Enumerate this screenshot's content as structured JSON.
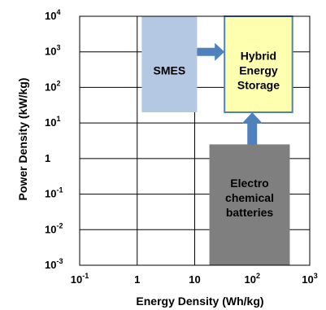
{
  "chart_data": {
    "type": "diagram",
    "xlabel": "Energy Density (Wh/kg)",
    "ylabel": "Power Density (kW/kg)",
    "x_scale": "log",
    "y_scale": "log",
    "xlim": [
      0.1,
      1000
    ],
    "ylim": [
      0.001,
      10000
    ],
    "grid": true,
    "x_ticks": [
      {
        "base": "10",
        "exp": "-1"
      },
      {
        "base": "1",
        "exp": ""
      },
      {
        "base": "10",
        "exp": ""
      },
      {
        "base": "10",
        "exp": "2"
      },
      {
        "base": "10",
        "exp": "3"
      }
    ],
    "y_ticks": [
      {
        "base": "10",
        "exp": "4"
      },
      {
        "base": "10",
        "exp": "3"
      },
      {
        "base": "10",
        "exp": "2"
      },
      {
        "base": "10",
        "exp": "1"
      },
      {
        "base": "1",
        "exp": ""
      },
      {
        "base": "10",
        "exp": "-1"
      },
      {
        "base": "10",
        "exp": "-2"
      },
      {
        "base": "10",
        "exp": "-3"
      }
    ],
    "regions": [
      {
        "name": "SMES",
        "lines": [
          "SMES"
        ],
        "x_range": [
          1.2,
          11
        ],
        "y_range": [
          20,
          10000
        ],
        "fill": "#b4c8e4",
        "stroke": "none"
      },
      {
        "name": "Hybrid Energy Storage",
        "lines": [
          "Hybrid",
          "Energy",
          "Storage"
        ],
        "x_range": [
          33,
          500
        ],
        "y_range": [
          20,
          10000
        ],
        "fill": "#ffffb0",
        "stroke": "#4f81bd"
      },
      {
        "name": "Electro chemical batteries",
        "lines": [
          "Electro",
          "chemical",
          "batteries"
        ],
        "x_range": [
          18,
          450
        ],
        "y_range": [
          0.001,
          2.5
        ],
        "fill": "#7f7f7f",
        "stroke": "none"
      }
    ],
    "arrows": [
      {
        "from": "SMES",
        "to": "Hybrid Energy Storage",
        "direction": "right",
        "color": "#4f81bd"
      },
      {
        "from": "Electro chemical batteries",
        "to": "Hybrid Energy Storage",
        "direction": "up",
        "color": "#4f81bd"
      }
    ]
  }
}
